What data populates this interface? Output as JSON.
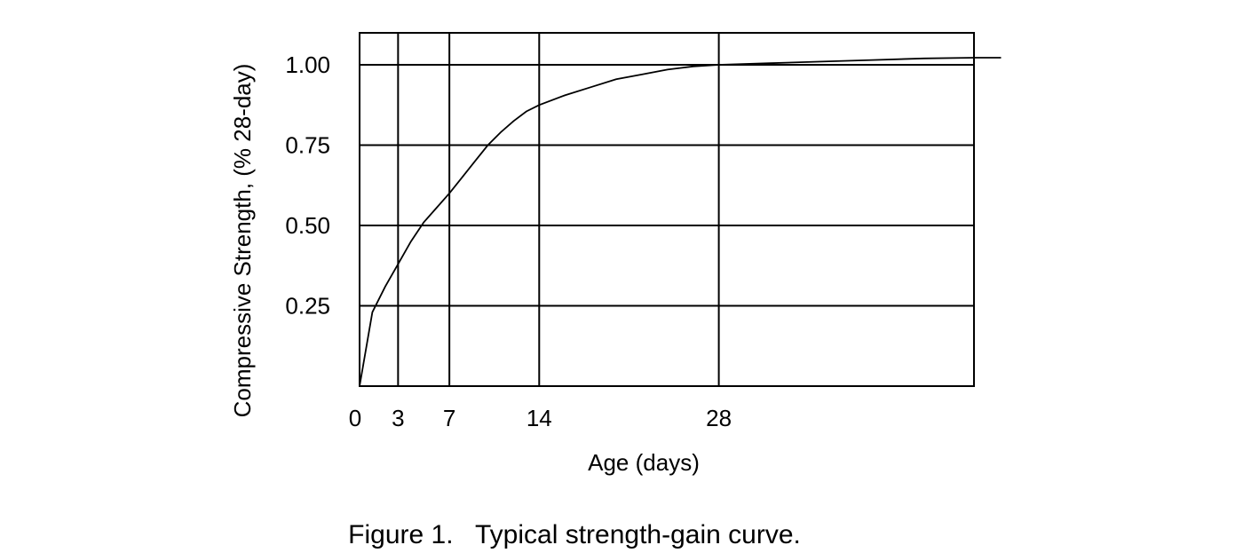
{
  "chart_data": {
    "type": "line",
    "title": "",
    "xlabel": "Age (days)",
    "ylabel": "Compressive Strength, (% 28-day)",
    "x_ticks": [
      0,
      3,
      7,
      14,
      28
    ],
    "y_ticks": [
      0.25,
      0.5,
      0.75,
      1.0
    ],
    "y_tick_labels": [
      "0.25",
      "0.50",
      "0.75",
      "1.00"
    ],
    "xlim": [
      0,
      50
    ],
    "ylim": [
      0,
      1.1
    ],
    "grid": true,
    "legend": "none",
    "series": [
      {
        "x": [
          0,
          1,
          2,
          3,
          4,
          5,
          6,
          7,
          8,
          9,
          10,
          11,
          12,
          13,
          14,
          16,
          18,
          20,
          22,
          24,
          26,
          28,
          32,
          36,
          40,
          44,
          48,
          50
        ],
        "y": [
          0,
          0.23,
          0.31,
          0.38,
          0.45,
          0.51,
          0.555,
          0.6,
          0.65,
          0.7,
          0.75,
          0.79,
          0.825,
          0.855,
          0.875,
          0.905,
          0.93,
          0.955,
          0.97,
          0.985,
          0.995,
          1.0,
          1.005,
          1.01,
          1.015,
          1.02,
          1.022,
          1.022
        ],
        "color": "#000000"
      }
    ]
  },
  "caption": "Figure 1.   Typical strength-gain curve."
}
